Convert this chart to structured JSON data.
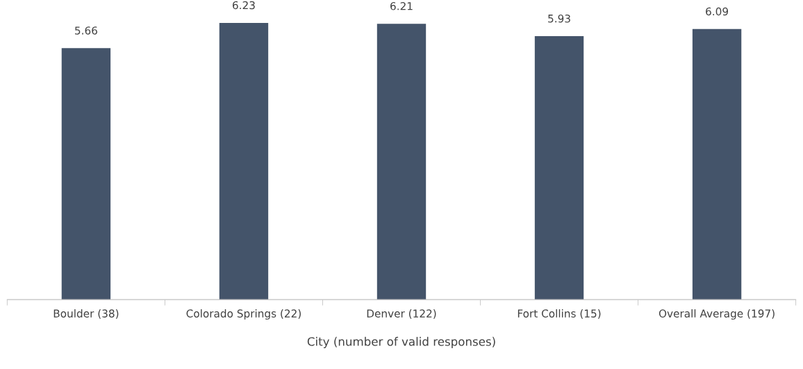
{
  "chart_data": {
    "type": "bar",
    "xlabel": "City (number of valid responses)",
    "categories": [
      "Boulder (38)",
      "Colorado Springs (22)",
      "Denver (122)",
      "Fort Collins (15)",
      "Overall Average (197)"
    ],
    "values": [
      5.66,
      6.23,
      6.21,
      5.93,
      6.09
    ],
    "color": "#44546a",
    "data_labels": true,
    "tick_labels": "x"
  }
}
